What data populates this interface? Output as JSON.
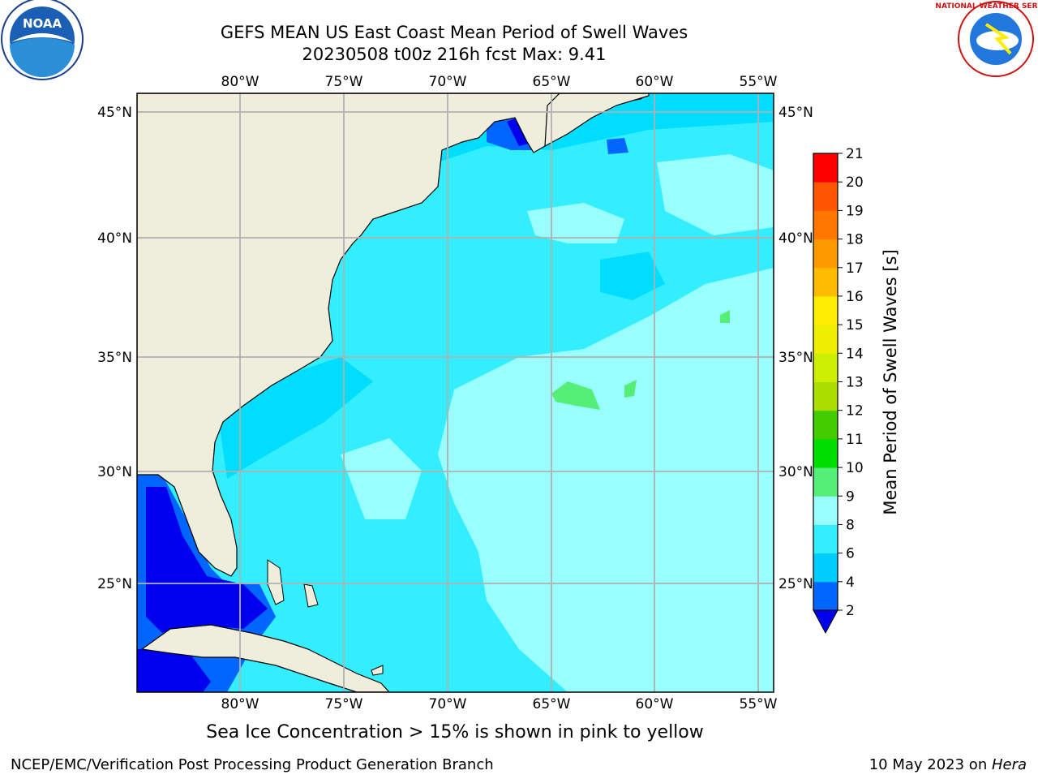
{
  "title": {
    "line1": "GEFS MEAN US East Coast Mean Period of Swell Waves",
    "line2": "20230508 t00z 216h fcst   Max: 9.41"
  },
  "logos": {
    "left": {
      "icon": "noaa-logo",
      "text": "NOAA"
    },
    "right": {
      "icon": "nws-logo",
      "text": "NATIONAL WEATHER SERVICE"
    }
  },
  "map": {
    "lon_ticks": [
      "80°W",
      "75°W",
      "70°W",
      "65°W",
      "60°W",
      "55°W"
    ],
    "lat_ticks": [
      "45°N",
      "40°N",
      "35°N",
      "30°N",
      "25°N"
    ],
    "lon_range": [
      -85,
      -54
    ],
    "lat_range": [
      20.5,
      46
    ],
    "colors": {
      "land": "#efeedd",
      "grid": "#b0b0b0",
      "coast": "#000000"
    }
  },
  "colorbar": {
    "label": "Mean Period of Swell Waves [s]",
    "ticks": [
      "2",
      "4",
      "6",
      "8",
      "9",
      "10",
      "11",
      "12",
      "13",
      "14",
      "15",
      "16",
      "17",
      "18",
      "19",
      "20",
      "21"
    ],
    "bins": [
      {
        "from": 2,
        "to": 4,
        "color": "#0066ff"
      },
      {
        "from": 4,
        "to": 6,
        "color": "#00ccff"
      },
      {
        "from": 6,
        "to": 8,
        "color": "#33eeff"
      },
      {
        "from": 8,
        "to": 9,
        "color": "#99ffff"
      },
      {
        "from": 9,
        "to": 10,
        "color": "#55ee77"
      },
      {
        "from": 10,
        "to": 11,
        "color": "#00dd00"
      },
      {
        "from": 11,
        "to": 12,
        "color": "#44cc00"
      },
      {
        "from": 12,
        "to": 13,
        "color": "#aadd00"
      },
      {
        "from": 13,
        "to": 14,
        "color": "#ccee00"
      },
      {
        "from": 14,
        "to": 15,
        "color": "#eeee00"
      },
      {
        "from": 15,
        "to": 16,
        "color": "#ffee00"
      },
      {
        "from": 16,
        "to": 17,
        "color": "#ffbb00"
      },
      {
        "from": 17,
        "to": 18,
        "color": "#ff9900"
      },
      {
        "from": 18,
        "to": 19,
        "color": "#ff7700"
      },
      {
        "from": 19,
        "to": 20,
        "color": "#ff5500"
      },
      {
        "from": 20,
        "to": 21,
        "color": "#ff0000"
      }
    ],
    "under_color": "#0000ee"
  },
  "footer": {
    "note": "Sea Ice Concentration > 15% is shown in pink to yellow",
    "credit": "NCEP/EMC/Verification Post Processing Product Generation Branch",
    "date": "10 May 2023 on ",
    "machine": "Hera"
  }
}
